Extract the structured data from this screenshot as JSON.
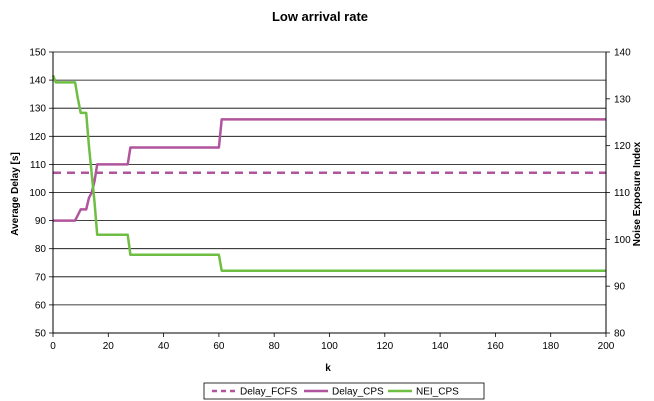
{
  "chart_data": {
    "type": "line",
    "title": "Low arrival rate",
    "xlabel": "k",
    "ylabel_left": "Average Delay [s]",
    "ylabel_right": "Noise Exposure Index",
    "xlim": [
      0,
      200
    ],
    "xticks": [
      0,
      20,
      40,
      60,
      80,
      100,
      120,
      140,
      160,
      180,
      200
    ],
    "ylim_left": [
      50,
      150
    ],
    "yticks_left": [
      50,
      60,
      70,
      80,
      90,
      100,
      110,
      120,
      130,
      140,
      150
    ],
    "ylim_right": [
      80,
      140
    ],
    "yticks_right": [
      80,
      90,
      100,
      110,
      120,
      130,
      140
    ],
    "grid": true,
    "legend_position": "bottom",
    "series": [
      {
        "name": "Delay_FCFS",
        "axis": "left",
        "color": "#b0549d",
        "style": "dashed",
        "x": [
          0,
          200
        ],
        "y": [
          107,
          107
        ]
      },
      {
        "name": "Delay_CPS",
        "axis": "left",
        "color": "#b0549d",
        "style": "solid",
        "x": [
          0,
          8,
          9,
          10,
          11,
          12,
          13,
          14,
          15,
          16,
          17,
          27,
          28,
          60,
          61,
          200
        ],
        "y": [
          90,
          90,
          92,
          94,
          94,
          94,
          98,
          100,
          104,
          110,
          110,
          110,
          116,
          116,
          126,
          126
        ]
      },
      {
        "name": "NEI_CPS",
        "axis": "right",
        "color": "#6fbe44",
        "style": "solid",
        "x": [
          0,
          1,
          8,
          9,
          10,
          11,
          12,
          13,
          14,
          15,
          16,
          27,
          28,
          60,
          61,
          200
        ],
        "y": [
          135,
          133.5,
          133.5,
          130,
          127,
          127,
          127,
          120,
          114,
          108,
          101,
          101,
          96.7,
          96.7,
          93.3,
          93.3
        ]
      }
    ]
  }
}
